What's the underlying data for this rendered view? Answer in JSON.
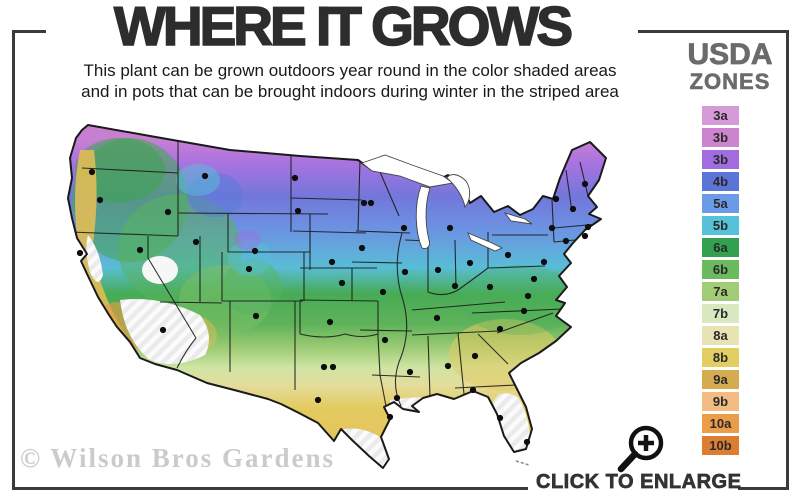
{
  "header": {
    "title": "WHERE IT GROWS",
    "subtitle_line1": "This plant can be grown outdoors year round in the color shaded areas",
    "subtitle_line2": "and in pots that can be brought indoors during winter in the striped area"
  },
  "legend": {
    "title_line1": "USDA",
    "title_line2": "ZONES",
    "zones": [
      {
        "label": "3a",
        "color": "#d79ad8"
      },
      {
        "label": "3b",
        "color": "#cc84cf"
      },
      {
        "label": "3b",
        "color": "#a06ce0"
      },
      {
        "label": "4b",
        "color": "#5a74d8"
      },
      {
        "label": "5a",
        "color": "#6b9be8"
      },
      {
        "label": "5b",
        "color": "#56c2d8"
      },
      {
        "label": "6a",
        "color": "#33a04f"
      },
      {
        "label": "6b",
        "color": "#6cba5e"
      },
      {
        "label": "7a",
        "color": "#a3cc77"
      },
      {
        "label": "7b",
        "color": "#d8e9c0"
      },
      {
        "label": "8a",
        "color": "#e8e3b3"
      },
      {
        "label": "8b",
        "color": "#e2ce62"
      },
      {
        "label": "9a",
        "color": "#d4ab4e"
      },
      {
        "label": "9b",
        "color": "#f2bc82"
      },
      {
        "label": "10a",
        "color": "#eb9d49"
      },
      {
        "label": "10b",
        "color": "#dc7e31"
      }
    ]
  },
  "map": {
    "description": "USDA plant hardiness zone map of the contiguous United States with city dots",
    "city_dots": [
      [
        92,
        172
      ],
      [
        100,
        200
      ],
      [
        168,
        212
      ],
      [
        205,
        176
      ],
      [
        295,
        178
      ],
      [
        298,
        211
      ],
      [
        364,
        203
      ],
      [
        371,
        203
      ],
      [
        404,
        228
      ],
      [
        450,
        228
      ],
      [
        140,
        250
      ],
      [
        196,
        242
      ],
      [
        255,
        251
      ],
      [
        249,
        269
      ],
      [
        332,
        262
      ],
      [
        362,
        248
      ],
      [
        405,
        272
      ],
      [
        438,
        270
      ],
      [
        470,
        263
      ],
      [
        80,
        253
      ],
      [
        163,
        330
      ],
      [
        256,
        316
      ],
      [
        342,
        283
      ],
      [
        383,
        292
      ],
      [
        455,
        286
      ],
      [
        490,
        287
      ],
      [
        528,
        296
      ],
      [
        534,
        279
      ],
      [
        508,
        255
      ],
      [
        544,
        262
      ],
      [
        552,
        228
      ],
      [
        566,
        241
      ],
      [
        585,
        236
      ],
      [
        588,
        227
      ],
      [
        573,
        209
      ],
      [
        556,
        199
      ],
      [
        585,
        184
      ],
      [
        330,
        322
      ],
      [
        385,
        340
      ],
      [
        437,
        318
      ],
      [
        524,
        311
      ],
      [
        500,
        329
      ],
      [
        475,
        356
      ],
      [
        448,
        366
      ],
      [
        410,
        372
      ],
      [
        397,
        398
      ],
      [
        473,
        390
      ],
      [
        500,
        418
      ],
      [
        527,
        442
      ],
      [
        318,
        400
      ],
      [
        324,
        367
      ],
      [
        333,
        367
      ],
      [
        390,
        417
      ]
    ]
  },
  "footer": {
    "watermark": "© Wilson Bros Gardens",
    "enlarge_label": "CLICK TO ENLARGE",
    "enlarge_icon": "magnifying-glass-plus-icon"
  }
}
